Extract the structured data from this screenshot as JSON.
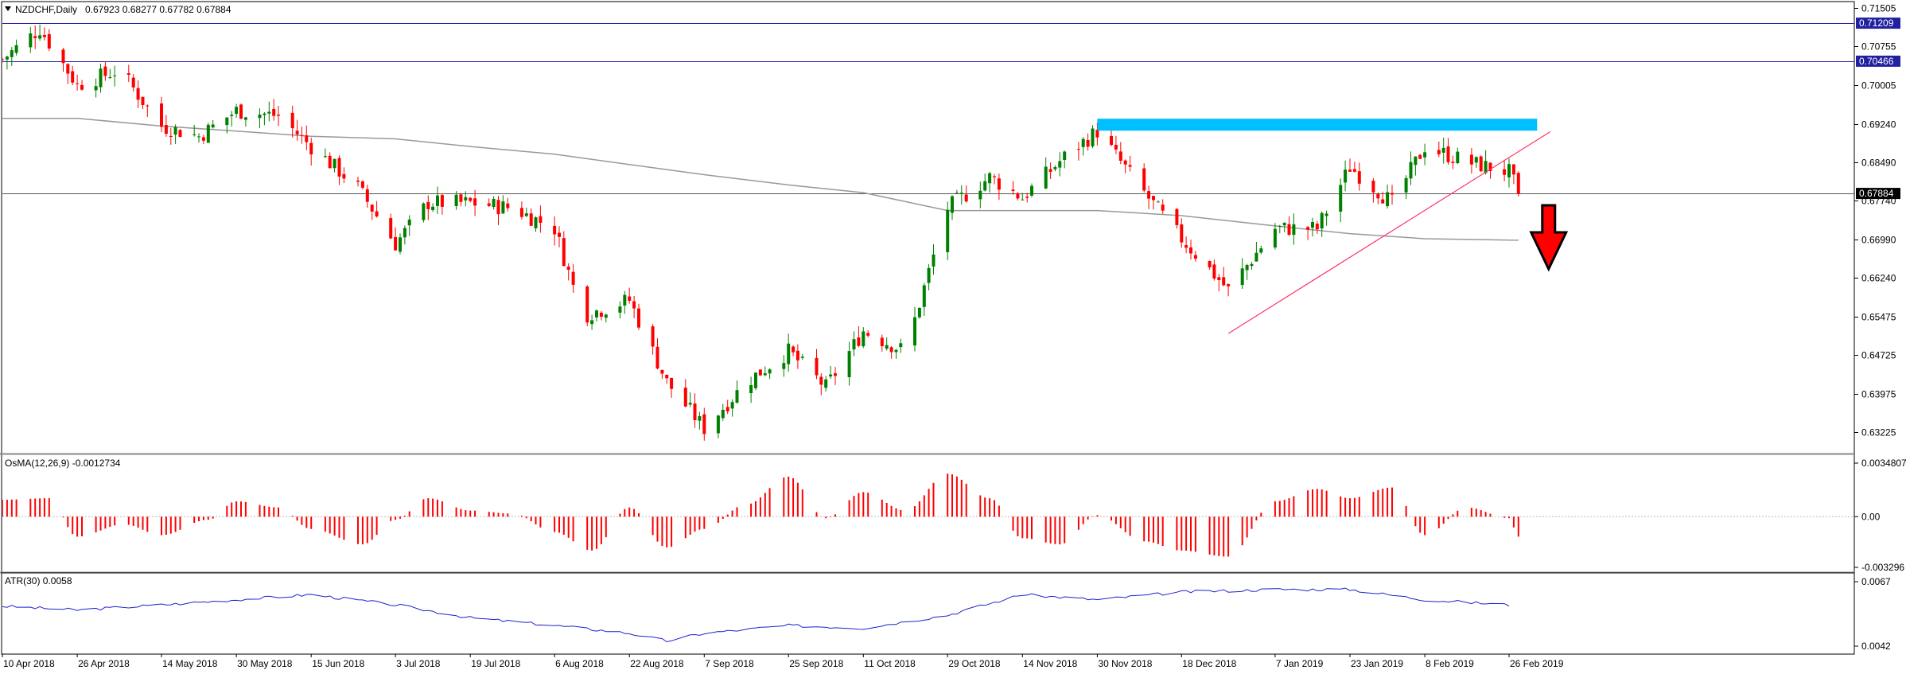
{
  "main_pane": {
    "symbol_title": "NZDCHF,Daily",
    "ohlc": "0.67923 0.68277 0.67782 0.67884",
    "price_ticks": [
      "0.71505",
      "0.70755",
      "0.70005",
      "0.69240",
      "0.68490",
      "0.67740",
      "0.66990",
      "0.66240",
      "0.65475",
      "0.64725",
      "0.63975",
      "0.63225"
    ],
    "price_tick_values": [
      0.71505,
      0.70755,
      0.70005,
      0.6924,
      0.6849,
      0.6774,
      0.6699,
      0.6624,
      0.65475,
      0.64725,
      0.63975,
      0.63225
    ],
    "level_labels": [
      {
        "text": "0.71209",
        "value": 0.71209,
        "kind": "hline"
      },
      {
        "text": "0.70466",
        "value": 0.70466,
        "kind": "hline"
      },
      {
        "text": "0.67884",
        "value": 0.67884,
        "kind": "current"
      }
    ],
    "resistance_zone": {
      "x_start": "30 Nov 2018",
      "x_end": "4 Mar 2019",
      "low": 0.6915,
      "high": 0.6925
    },
    "trendline": {
      "from": [
        "28 Dec 2018",
        0.6515
      ],
      "to": [
        "28 Feb 2019",
        0.687
      ]
    },
    "arrow": {
      "direction": "down",
      "color": "#ff0000"
    },
    "colors": {
      "bull": "#008000",
      "bear": "#ff0000",
      "hline": "#2020a0",
      "ma": "#999999",
      "zone": "#00bfff",
      "trend": "#ff3366"
    }
  },
  "osma_pane": {
    "title": "OsMA(12,26,9) -0.0012734",
    "ticks": [
      "0.0034807",
      "0.00",
      "-0.003296"
    ],
    "tick_values": [
      0.0034807,
      0,
      -0.003296
    ]
  },
  "atr_pane": {
    "title": "ATR(30) 0.0058",
    "ticks": [
      "0.0067",
      "0.0042"
    ],
    "tick_values": [
      0.0067,
      0.0042
    ]
  },
  "time_axis": {
    "labels": [
      "10 Apr 2018",
      "26 Apr 2018",
      "14 May 2018",
      "30 May 2018",
      "15 Jun 2018",
      "3 Jul 2018",
      "19 Jul 2018",
      "6 Aug 2018",
      "22 Aug 2018",
      "7 Sep 2018",
      "25 Sep 2018",
      "11 Oct 2018",
      "29 Oct 2018",
      "14 Nov 2018",
      "30 Nov 2018",
      "18 Dec 2018",
      "7 Jan 2019",
      "23 Jan 2019",
      "8 Feb 2019",
      "26 Feb 2019"
    ]
  },
  "chart_data": [
    {
      "type": "candlestick",
      "title": "NZDCHF,Daily",
      "ylim": [
        0.6285,
        0.7175
      ],
      "series_path": [
        [
          "10 Apr 2018",
          0.705
        ],
        [
          "18 Apr 2018",
          0.711
        ],
        [
          "26 Apr 2018",
          0.7
        ],
        [
          "5 May 2018",
          0.703
        ],
        [
          "14 May 2018",
          0.692
        ],
        [
          "22 May 2018",
          0.69
        ],
        [
          "30 May 2018",
          0.695
        ],
        [
          "8 Jun 2018",
          0.694
        ],
        [
          "15 Jun 2018",
          0.688
        ],
        [
          "25 Jun 2018",
          0.68
        ],
        [
          "3 Jul 2018",
          0.669
        ],
        [
          "10 Jul 2018",
          0.677
        ],
        [
          "19 Jul 2018",
          0.677
        ],
        [
          "28 Jul 2018",
          0.676
        ],
        [
          "6 Aug 2018",
          0.672
        ],
        [
          "12 Aug 2018",
          0.655
        ],
        [
          "22 Aug 2018",
          0.658
        ],
        [
          "30 Aug 2018",
          0.642
        ],
        [
          "7 Sep 2018",
          0.633
        ],
        [
          "16 Sep 2018",
          0.642
        ],
        [
          "25 Sep 2018",
          0.648
        ],
        [
          "3 Oct 2018",
          0.641
        ],
        [
          "11 Oct 2018",
          0.652
        ],
        [
          "20 Oct 2018",
          0.648
        ],
        [
          "29 Oct 2018",
          0.676
        ],
        [
          "7 Nov 2018",
          0.682
        ],
        [
          "14 Nov 2018",
          0.678
        ],
        [
          "23 Nov 2018",
          0.686
        ],
        [
          "30 Nov 2018",
          0.691
        ],
        [
          "10 Dec 2018",
          0.679
        ],
        [
          "18 Dec 2018",
          0.67
        ],
        [
          "28 Dec 2018",
          0.66
        ],
        [
          "7 Jan 2019",
          0.672
        ],
        [
          "16 Jan 2019",
          0.672
        ],
        [
          "23 Jan 2019",
          0.684
        ],
        [
          "1 Feb 2019",
          0.677
        ],
        [
          "8 Feb 2019",
          0.688
        ],
        [
          "17 Feb 2019",
          0.685
        ],
        [
          "26 Feb 2019",
          0.683
        ],
        [
          "28 Feb 2019",
          0.6788
        ]
      ],
      "candle_count": 244,
      "moving_average_path": [
        [
          "10 Apr 2018",
          0.6935
        ],
        [
          "26 Apr 2018",
          0.6935
        ],
        [
          "14 May 2018",
          0.692
        ],
        [
          "30 May 2018",
          0.691
        ],
        [
          "15 Jun 2018",
          0.69
        ],
        [
          "3 Jul 2018",
          0.6895
        ],
        [
          "19 Jul 2018",
          0.688
        ],
        [
          "6 Aug 2018",
          0.6865
        ],
        [
          "22 Aug 2018",
          0.6845
        ],
        [
          "7 Sep 2018",
          0.6825
        ],
        [
          "25 Sep 2018",
          0.6805
        ],
        [
          "11 Oct 2018",
          0.679
        ],
        [
          "29 Oct 2018",
          0.6755
        ],
        [
          "14 Nov 2018",
          0.6755
        ],
        [
          "30 Nov 2018",
          0.6755
        ],
        [
          "18 Dec 2018",
          0.6745
        ],
        [
          "7 Jan 2019",
          0.6725
        ],
        [
          "23 Jan 2019",
          0.671
        ],
        [
          "8 Feb 2019",
          0.67
        ],
        [
          "28 Feb 2019",
          0.6697
        ]
      ]
    },
    {
      "type": "bar",
      "title": "OsMA(12,26,9) -0.0012734",
      "ylim": [
        -0.003296,
        0.0034807
      ],
      "path": [
        [
          "10 Apr 2018",
          0.0011
        ],
        [
          "20 Apr 2018",
          0.0012
        ],
        [
          "26 Apr 2018",
          -0.0013
        ],
        [
          "6 May 2018",
          -0.0005
        ],
        [
          "14 May 2018",
          -0.0012
        ],
        [
          "24 May 2018",
          -0.0002
        ],
        [
          "30 May 2018",
          0.001
        ],
        [
          "8 Jun 2018",
          0.0006
        ],
        [
          "15 Jun 2018",
          -0.0008
        ],
        [
          "26 Jun 2018",
          -0.0018
        ],
        [
          "3 Jul 2018",
          -0.0002
        ],
        [
          "10 Jul 2018",
          0.0012
        ],
        [
          "19 Jul 2018",
          0.0004
        ],
        [
          "28 Jul 2018",
          0.0002
        ],
        [
          "6 Aug 2018",
          -0.001
        ],
        [
          "14 Aug 2018",
          -0.0022
        ],
        [
          "22 Aug 2018",
          0.0006
        ],
        [
          "30 Aug 2018",
          -0.002
        ],
        [
          "7 Sep 2018",
          -0.0008
        ],
        [
          "16 Sep 2018",
          0.0008
        ],
        [
          "25 Sep 2018",
          0.0026
        ],
        [
          "3 Oct 2018",
          -0.0001
        ],
        [
          "11 Oct 2018",
          0.0016
        ],
        [
          "20 Oct 2018",
          0.0004
        ],
        [
          "29 Oct 2018",
          0.0028
        ],
        [
          "7 Nov 2018",
          0.0012
        ],
        [
          "14 Nov 2018",
          -0.0014
        ],
        [
          "22 Nov 2018",
          -0.0018
        ],
        [
          "30 Nov 2018",
          0.0001
        ],
        [
          "10 Dec 2018",
          -0.0016
        ],
        [
          "18 Dec 2018",
          -0.0022
        ],
        [
          "28 Dec 2018",
          -0.0026
        ],
        [
          "7 Jan 2019",
          0.001
        ],
        [
          "16 Jan 2019",
          0.0018
        ],
        [
          "23 Jan 2019",
          0.0012
        ],
        [
          "1 Feb 2019",
          0.0019
        ],
        [
          "8 Feb 2019",
          -0.0012
        ],
        [
          "17 Feb 2019",
          0.0006
        ],
        [
          "26 Feb 2019",
          -0.0001
        ],
        [
          "28 Feb 2019",
          -0.0013
        ]
      ]
    },
    {
      "type": "line",
      "title": "ATR(30) 0.0058",
      "ylim": [
        0.0042,
        0.0067
      ],
      "path": [
        [
          "10 Apr 2018",
          0.00575
        ],
        [
          "26 Apr 2018",
          0.0056
        ],
        [
          "14 May 2018",
          0.0058
        ],
        [
          "30 May 2018",
          0.006
        ],
        [
          "15 Jun 2018",
          0.0062
        ],
        [
          "3 Jul 2018",
          0.0058
        ],
        [
          "19 Jul 2018",
          0.0053
        ],
        [
          "6 Aug 2018",
          0.005
        ],
        [
          "22 Aug 2018",
          0.0047
        ],
        [
          "30 Aug 2018",
          0.0044
        ],
        [
          "7 Sep 2018",
          0.0047
        ],
        [
          "25 Sep 2018",
          0.005
        ],
        [
          "11 Oct 2018",
          0.0049
        ],
        [
          "29 Oct 2018",
          0.0054
        ],
        [
          "14 Nov 2018",
          0.0062
        ],
        [
          "30 Nov 2018",
          0.006
        ],
        [
          "18 Dec 2018",
          0.0063
        ],
        [
          "7 Jan 2019",
          0.0064
        ],
        [
          "23 Jan 2019",
          0.0064
        ],
        [
          "8 Feb 2019",
          0.006
        ],
        [
          "26 Feb 2019",
          0.0058
        ]
      ]
    }
  ]
}
